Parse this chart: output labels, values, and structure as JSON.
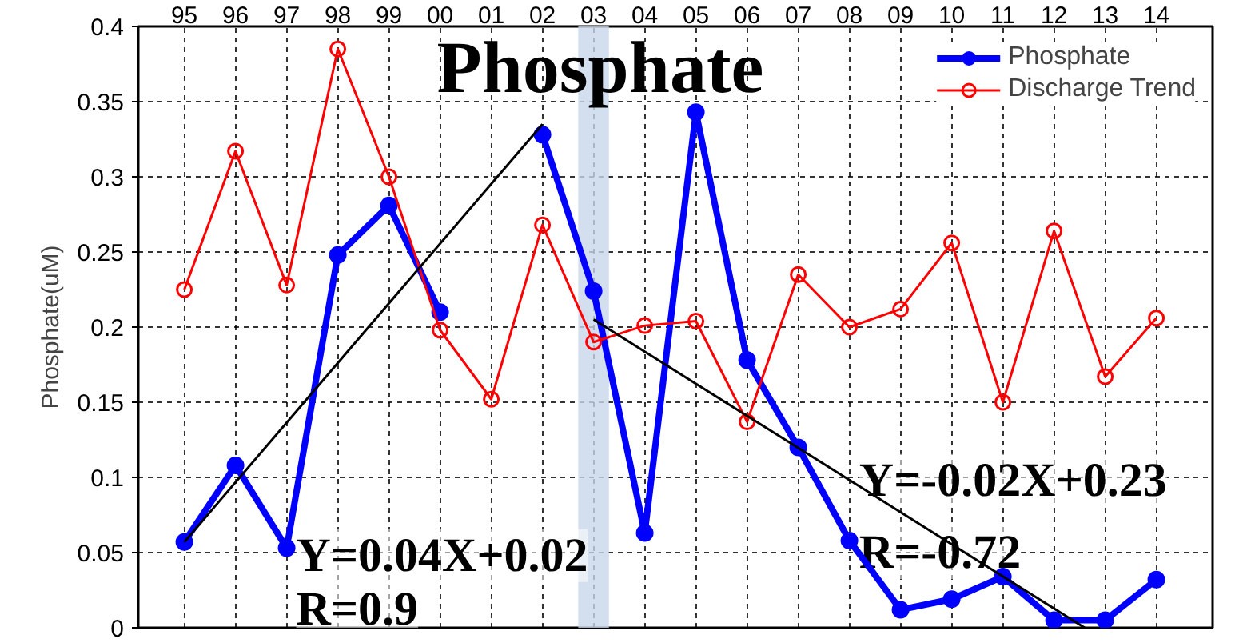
{
  "chart_data": {
    "type": "line",
    "title": "Phosphate",
    "ylabel": "Phosphate(uM)",
    "x": [
      1995,
      1996,
      1997,
      1998,
      1999,
      2000,
      2001,
      2002,
      2003,
      2004,
      2005,
      2006,
      2007,
      2008,
      2009,
      2010,
      2011,
      2012,
      2013,
      2014
    ],
    "xlim": [
      1994.1,
      2015.1
    ],
    "xticks": [
      {
        "value": 1995,
        "label": "95"
      },
      {
        "value": 1996,
        "label": "96"
      },
      {
        "value": 1997,
        "label": "97"
      },
      {
        "value": 1998,
        "label": "98"
      },
      {
        "value": 1999,
        "label": "99"
      },
      {
        "value": 2000,
        "label": "00"
      },
      {
        "value": 2001,
        "label": "01"
      },
      {
        "value": 2002,
        "label": "02"
      },
      {
        "value": 2003,
        "label": "03"
      },
      {
        "value": 2004,
        "label": "04"
      },
      {
        "value": 2005,
        "label": "05"
      },
      {
        "value": 2006,
        "label": "06"
      },
      {
        "value": 2007,
        "label": "07"
      },
      {
        "value": 2008,
        "label": "08"
      },
      {
        "value": 2009,
        "label": "09"
      },
      {
        "value": 2010,
        "label": "10"
      },
      {
        "value": 2011,
        "label": "11"
      },
      {
        "value": 2012,
        "label": "12"
      },
      {
        "value": 2013,
        "label": "13"
      },
      {
        "value": 2014,
        "label": "14"
      }
    ],
    "ylim": [
      0,
      0.4
    ],
    "yticks": [
      0,
      0.05,
      0.1,
      0.15,
      0.2,
      0.25,
      0.3,
      0.35,
      0.4
    ],
    "grid": true,
    "legend": "top right",
    "series": [
      {
        "name": "Phosphate",
        "color": "#0000ff",
        "marker": "circle",
        "values": [
          0.057,
          0.108,
          0.053,
          0.248,
          0.281,
          0.21,
          null,
          0.328,
          0.224,
          0.063,
          0.343,
          0.178,
          0.12,
          0.058,
          0.012,
          0.019,
          0.034,
          0.005,
          0.005,
          0.032
        ]
      },
      {
        "name": "Discharge Trend",
        "color": "#ff0000",
        "marker": "open_circle",
        "values": [
          0.225,
          0.317,
          0.228,
          0.385,
          0.3,
          0.198,
          0.152,
          0.268,
          0.19,
          0.201,
          0.204,
          0.137,
          0.235,
          0.2,
          0.212,
          0.256,
          0.15,
          0.264,
          0.167,
          0.206
        ]
      },
      {
        "type": "line",
        "color": "#000000",
        "marker": "none",
        "x": [
          1995,
          2002
        ],
        "values": [
          0.057,
          0.335
        ]
      },
      {
        "type": "line",
        "color": "#000000",
        "marker": "none",
        "x": [
          2003,
          2012.6
        ],
        "values": [
          0.205,
          0
        ]
      }
    ],
    "bands": [
      {
        "axis": "x",
        "from": 2002.7,
        "to": 2003.3,
        "color": "#c8d6ea"
      }
    ],
    "annotations": [
      "Y=0.04X+0.02",
      "R=0.9",
      "Y=-0.02X+0.23",
      "R=-0.72"
    ]
  }
}
